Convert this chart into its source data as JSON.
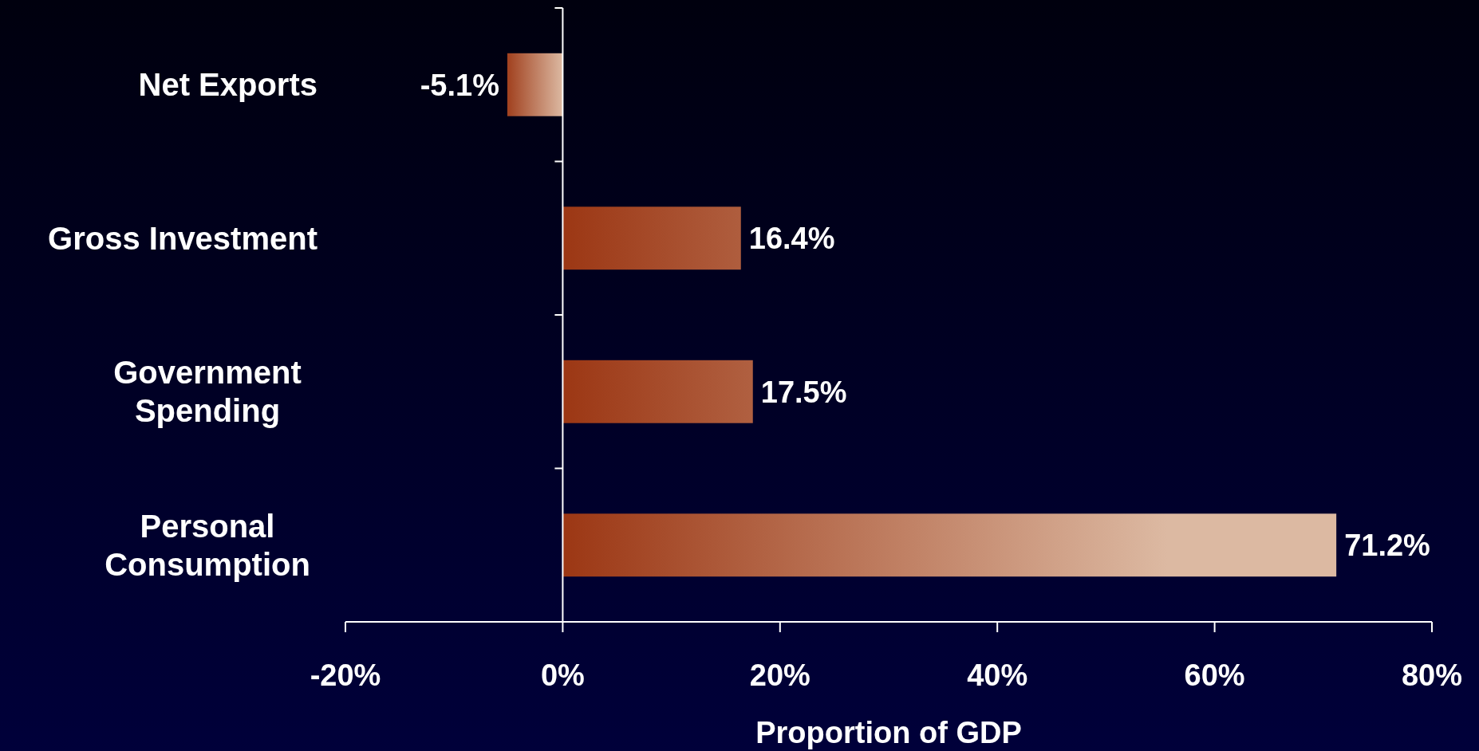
{
  "chart_data": {
    "type": "bar",
    "orientation": "horizontal",
    "xlabel": "Proportion of GDP",
    "categories": [
      "Net Exports",
      "Gross Investment",
      "Government Spending",
      "Personal Consumption"
    ],
    "values": [
      -5.1,
      16.4,
      17.5,
      71.2
    ],
    "value_labels": [
      "-5.1%",
      "16.4%",
      "17.5%",
      "71.2%"
    ],
    "color": "#dcb9a2",
    "xlim": [
      -20,
      80
    ],
    "xticks": [
      {
        "value": -20,
        "label": "-20%"
      },
      {
        "value": 0,
        "label": "0%"
      },
      {
        "value": 20,
        "label": "20%"
      },
      {
        "value": 40,
        "label": "40%"
      },
      {
        "value": 60,
        "label": "60%"
      },
      {
        "value": 80,
        "label": "80%"
      }
    ],
    "tick_labels": true
  }
}
